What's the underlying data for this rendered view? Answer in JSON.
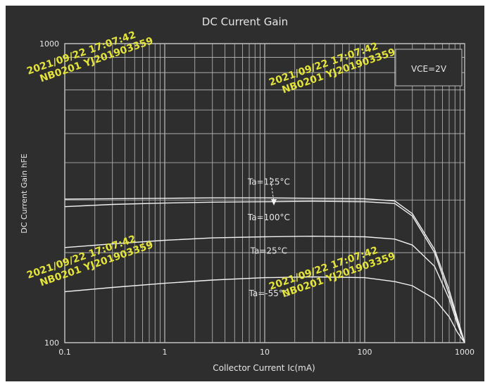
{
  "colors": {
    "frame": "#ffffff",
    "background": "#2e2e2e",
    "grid": "#bdbdbd",
    "curve": "#f2f2f2",
    "text": "#e6e6e6",
    "watermark": "#e3e33a"
  },
  "watermark": {
    "date_line": "2021/09/22  17:07:42",
    "id_line": "NB0201 YJ201903359"
  },
  "chart_data": {
    "type": "line",
    "title": "DC Current Gain",
    "xlabel": "Collector Current  Ic(mA)",
    "ylabel": "DC Current Gain   hFE",
    "x_scale": "log",
    "y_scale": "log",
    "xlim": [
      0.1,
      1000
    ],
    "ylim": [
      100,
      1000
    ],
    "x_ticks": [
      {
        "value": 0.1,
        "label": "0.1"
      },
      {
        "value": 1,
        "label": "1"
      },
      {
        "value": 10,
        "label": "10"
      },
      {
        "value": 100,
        "label": "100"
      },
      {
        "value": 1000,
        "label": "1000"
      }
    ],
    "y_ticks": [
      {
        "value": 100,
        "label": "100"
      },
      {
        "value": 1000,
        "label": "1000"
      }
    ],
    "grid": true,
    "condition_label": "VCE=2V",
    "series": [
      {
        "name": "Ta=125°C",
        "x": [
          0.1,
          0.3,
          1,
          3,
          10,
          30,
          100,
          200,
          300,
          500,
          700,
          850,
          1000
        ],
        "y": [
          302,
          303,
          304,
          305,
          305,
          304,
          303,
          298,
          270,
          205,
          150,
          120,
          100
        ]
      },
      {
        "name": "Ta=100°C",
        "x": [
          0.1,
          0.3,
          1,
          3,
          10,
          30,
          100,
          200,
          300,
          500,
          700,
          850,
          1000
        ],
        "y": [
          285,
          290,
          293,
          295,
          296,
          297,
          296,
          292,
          265,
          200,
          145,
          118,
          100
        ]
      },
      {
        "name": "Ta=25°C",
        "x": [
          0.1,
          0.3,
          1,
          3,
          10,
          30,
          100,
          200,
          300,
          500,
          700,
          850,
          1000
        ],
        "y": [
          208,
          214,
          220,
          224,
          226,
          227,
          226,
          222,
          212,
          180,
          140,
          115,
          100
        ]
      },
      {
        "name": "Ta=-55°C",
        "x": [
          0.1,
          0.3,
          1,
          3,
          10,
          30,
          100,
          200,
          300,
          500,
          700,
          850,
          1000
        ],
        "y": [
          148,
          153,
          158,
          162,
          165,
          166,
          165,
          160,
          155,
          140,
          122,
          108,
          100
        ]
      }
    ],
    "annotations": [
      {
        "text": "Ta=125°C",
        "x": 11,
        "y": 345
      },
      {
        "text": "Ta=100°C",
        "x": 11,
        "y": 262
      },
      {
        "text": "Ta=25°C",
        "x": 11,
        "y": 203
      },
      {
        "text": "Ta=-55°C",
        "x": 11,
        "y": 146
      }
    ]
  }
}
